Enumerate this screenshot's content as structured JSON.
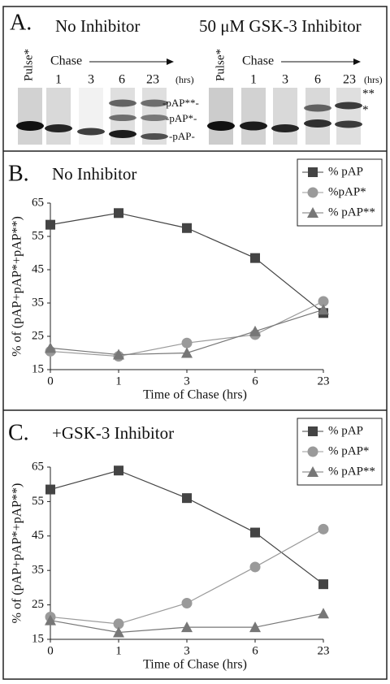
{
  "gel": {
    "panel_label": "A.",
    "left_title": "No Inhibitor",
    "right_title": "50 μM GSK-3 Inhibitor",
    "pulse_label": "Pulse*",
    "chase_label": "Chase",
    "lanes": [
      "1",
      "3",
      "6",
      "23"
    ],
    "unit": "(hrs)",
    "left_bands": [
      "-pAP**-",
      "-pAP*-",
      "-pAP-"
    ],
    "right_bands": [
      "**",
      "*"
    ]
  },
  "chart_data": [
    {
      "type": "line",
      "panel_label": "B.",
      "title": "No Inhibitor",
      "x_label": "Time of Chase (hrs)",
      "y_label": "% of (pAP+pAP*+pAP**)",
      "categories": [
        "0",
        "1",
        "3",
        "6",
        "23"
      ],
      "ylim": [
        15,
        65
      ],
      "yticks": [
        15,
        25,
        35,
        45,
        55,
        65
      ],
      "series": [
        {
          "name": "% pAP",
          "color": "#444444",
          "marker": "square",
          "values": [
            58.5,
            62,
            57.5,
            48.5,
            32
          ]
        },
        {
          "name": "%pAP*",
          "color": "#9a9a9a",
          "marker": "circle",
          "values": [
            20.5,
            19,
            23,
            25.5,
            35.5
          ]
        },
        {
          "name": "% pAP**",
          "color": "#777777",
          "marker": "triangle",
          "values": [
            21.5,
            19.5,
            20,
            26.5,
            33
          ]
        }
      ]
    },
    {
      "type": "line",
      "panel_label": "C.",
      "title": "+GSK-3 Inhibitor",
      "x_label": "Time of Chase (hrs)",
      "y_label": "% of (pAP+pAP*+pAP**)",
      "categories": [
        "0",
        "1",
        "3",
        "6",
        "23"
      ],
      "ylim": [
        15,
        65
      ],
      "yticks": [
        15,
        25,
        35,
        45,
        55,
        65
      ],
      "series": [
        {
          "name": "% pAP",
          "color": "#444444",
          "marker": "square",
          "values": [
            58.5,
            64,
            56,
            46,
            31
          ]
        },
        {
          "name": "% pAP*",
          "color": "#9a9a9a",
          "marker": "circle",
          "values": [
            21.5,
            19.5,
            25.5,
            36,
            47
          ]
        },
        {
          "name": "% pAP**",
          "color": "#777777",
          "marker": "triangle",
          "values": [
            20.5,
            17,
            18.5,
            18.5,
            22.5
          ]
        }
      ]
    }
  ]
}
